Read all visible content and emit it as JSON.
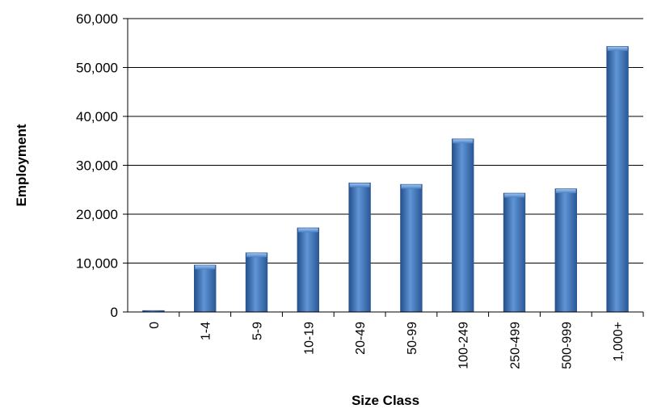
{
  "chart_data": {
    "type": "bar",
    "categories": [
      "0",
      "1-4",
      "5-9",
      "10-19",
      "20-49",
      "50-99",
      "100-249",
      "250-499",
      "500-999",
      "1,000+"
    ],
    "values": [
      300,
      9600,
      12100,
      17200,
      26400,
      26100,
      35400,
      24300,
      25200,
      54300
    ],
    "xlabel": "Size Class",
    "ylabel": "Employment",
    "ylim": [
      0,
      60000
    ],
    "yticks": [
      0,
      10000,
      20000,
      30000,
      40000,
      50000,
      60000
    ],
    "ytick_labels": [
      "0",
      "10,000",
      "20,000",
      "30,000",
      "40,000",
      "50,000",
      "60,000"
    ],
    "grid": true,
    "legend": "none",
    "bar_color": "#3F73B8"
  }
}
